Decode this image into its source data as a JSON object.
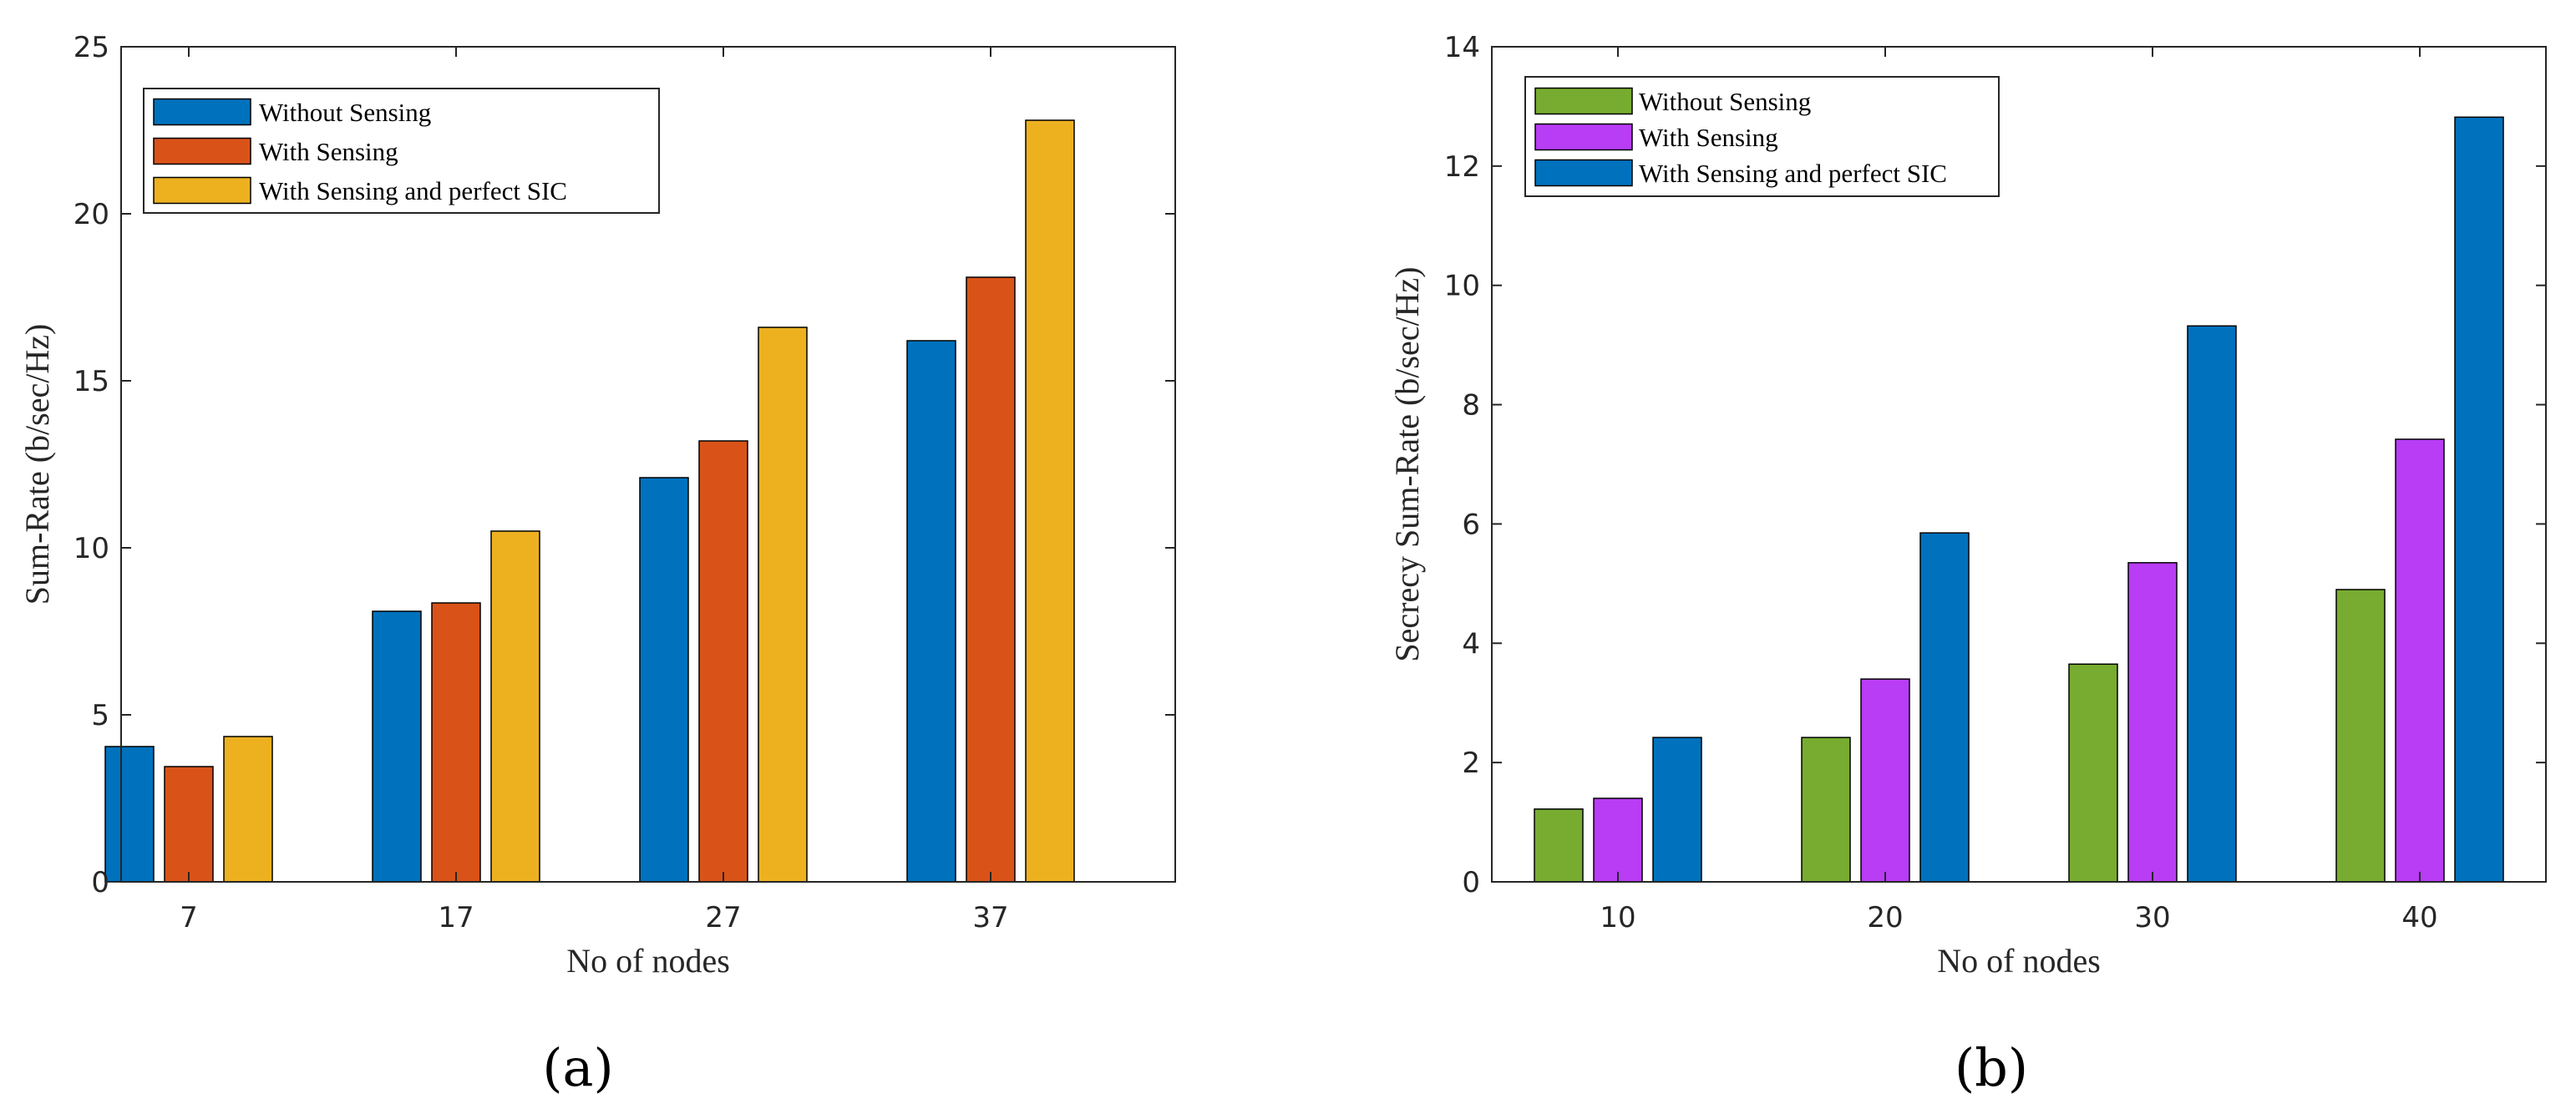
{
  "chart_data": [
    {
      "type": "bar",
      "categories": [
        "7",
        "17",
        "27",
        "37"
      ],
      "series": [
        {
          "name": "Without Sensing",
          "values": [
            4.05,
            8.1,
            12.1,
            16.2
          ],
          "color": "#0072BD"
        },
        {
          "name": "With Sensing",
          "values": [
            3.45,
            8.35,
            13.2,
            18.1
          ],
          "color": "#D95319"
        },
        {
          "name": "With Sensing and perfect SIC",
          "values": [
            4.35,
            10.5,
            16.6,
            22.8
          ],
          "color": "#EDB120"
        }
      ],
      "xlabel": "No of nodes",
      "ylabel": "Sum-Rate (b/sec/Hz)",
      "ylim": [
        0,
        25
      ],
      "yticks": [
        "0",
        "5",
        "10",
        "15",
        "20",
        "25"
      ],
      "grid": false,
      "legend": "top-left",
      "caption": "(a)"
    },
    {
      "type": "bar",
      "categories": [
        "10",
        "20",
        "30",
        "40"
      ],
      "series": [
        {
          "name": "Without Sensing",
          "values": [
            1.22,
            2.42,
            3.65,
            4.9
          ],
          "color": "#77AC30"
        },
        {
          "name": "With Sensing",
          "values": [
            1.4,
            3.4,
            5.35,
            7.42
          ],
          "color": "#B83DF5"
        },
        {
          "name": "With Sensing and perfect SIC",
          "values": [
            2.42,
            5.85,
            9.32,
            12.82
          ],
          "color": "#0072BD"
        }
      ],
      "xlabel": "No of nodes",
      "ylabel": "Secrecy Sum-Rate (b/sec/Hz)",
      "ylim": [
        0,
        14
      ],
      "yticks": [
        "0",
        "2",
        "4",
        "6",
        "8",
        "10",
        "12",
        "14"
      ],
      "grid": false,
      "legend": "top-left",
      "caption": "(b)"
    }
  ]
}
